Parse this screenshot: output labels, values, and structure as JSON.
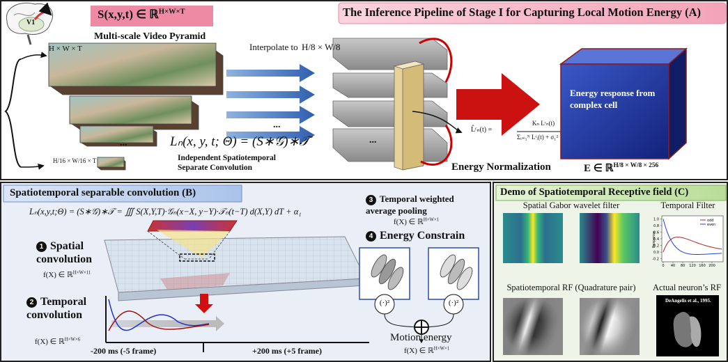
{
  "panel_a": {
    "title": "The Inference Pipeline of Stage I for Capturing Local Motion Energy (A)",
    "input_space": {
      "base": "S(x,y,t) ∈ ℝ",
      "sup": "H×W×T"
    },
    "brain_label": "V1",
    "input_size": "H × W × T",
    "pyramid_label": "Multi-scale Video Pyramid",
    "smallest_size": "H/16 × W/16 × T",
    "interpolate_label": "Interpolate to",
    "interpolate_size": "H/8 × W/8",
    "ellipses": [
      "...",
      "...",
      "..."
    ],
    "conv_formula": "Lₙ(x, y, t; Θ) = (S∗𝒢)∗𝒯",
    "conv_caption": [
      "Independent Spatiotemporal",
      "Separate Convolution"
    ],
    "norm_formula": {
      "lhs": "L̂ᶜₙ(t) =",
      "numerator": "Kₙ Lᶜₙ(t)",
      "denominator": "Σᵢ₌₁ᴺ Lᶜᵢ(t) + σ₁²"
    },
    "norm_label": "Energy Normalization",
    "cube_label": "Energy response from complex cell",
    "output_space": {
      "base": "E ∈ ℝ",
      "sup": "H/8 × W/8 × 256"
    }
  },
  "panel_b": {
    "title": "Spatiotemporal separable convolution (B)",
    "formula": "Lₙ(x,y,t;Θ) = (S∗𝒢)∗𝒯 = ∭ S(X,Y,T)·𝒢ₙ(x−X, y−Y)·𝒯ₙ(t−T) d(X,Y) dT + α₁",
    "steps": [
      {
        "number": "1",
        "label": "Spatial convolution",
        "space": {
          "base": "f(X) ∈ ℝ",
          "sup": "H×W×11"
        }
      },
      {
        "number": "2",
        "label": "Temporal convolution",
        "space": {
          "base": "f(X) ∈ ℝ",
          "sup": "H×W×6"
        }
      },
      {
        "number": "3",
        "label": "Temporal weighted average pooling",
        "space": {
          "base": "f(X) ∈ ℝ",
          "sup": "H×W×1"
        }
      },
      {
        "number": "4",
        "label": "Energy Constrain"
      }
    ],
    "time_labels": [
      "-200 ms (-5 frame)",
      "+200 ms (+5 frame)"
    ],
    "square_symbol": "(·)²",
    "output_label": "Motion energy",
    "output_space": {
      "base": "f(X) ∈ ℝ",
      "sup": "H×W×1"
    }
  },
  "panel_c": {
    "title": "Demo of Spatiotemporal Receptive field (C)",
    "filter_labels": [
      "Spatial Gabor wavelet filter",
      "Temporal Filter",
      "Spatiotemporal RF (Quadrature pair)",
      "Actual neuron’s RF"
    ],
    "citation": "DeAngelis et al., 1995.",
    "temporal_plot": {
      "ylabel": "Response",
      "series": [
        {
          "name": "odd",
          "color": "#b22222"
        },
        {
          "name": "even",
          "color": "#2040e0"
        }
      ],
      "xlim": [
        0,
        240
      ],
      "ylim": [
        -0.25,
        1.05
      ],
      "xticks": [
        0,
        40,
        80,
        120,
        160,
        200
      ],
      "yticks": [
        {
          "value": 1,
          "label": "1.0"
        },
        {
          "value": 0.8,
          "label": "0.8"
        },
        {
          "value": 0.6,
          "label": "0.6"
        },
        {
          "value": 0.4,
          "label": "0.4"
        },
        {
          "value": 0.2,
          "label": "0.2"
        },
        {
          "value": 0,
          "label": "0.0"
        },
        {
          "value": -0.2,
          "label": "-0.2"
        }
      ]
    }
  }
}
